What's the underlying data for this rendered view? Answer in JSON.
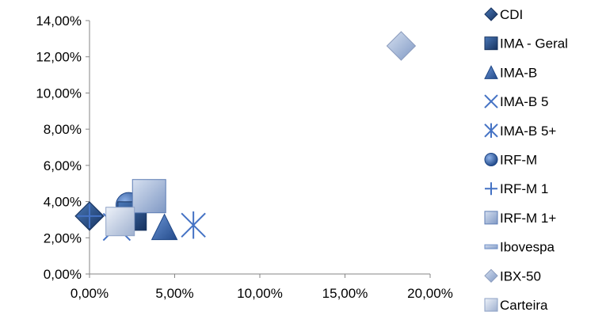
{
  "chart_data": {
    "type": "scatter",
    "title": "",
    "xlabel": "",
    "ylabel": "",
    "xlim": [
      0,
      0.2
    ],
    "ylim": [
      0,
      0.14
    ],
    "x_ticks": [
      "0,00%",
      "5,00%",
      "10,00%",
      "15,00%",
      "20,00%"
    ],
    "y_ticks": [
      "0,00%",
      "2,00%",
      "4,00%",
      "6,00%",
      "8,00%",
      "10,00%",
      "12,00%",
      "14,00%"
    ],
    "grid": false,
    "legend_position": "right",
    "series": [
      {
        "name": "CDI",
        "marker": "diamond",
        "color": "#1f497d",
        "x": 0.0,
        "y": 0.032
      },
      {
        "name": "IMA - Geral",
        "marker": "square",
        "color": "#1f497d",
        "x": 0.025,
        "y": 0.032
      },
      {
        "name": "IMA-B",
        "marker": "triangle",
        "color": "#2f5597",
        "x": 0.044,
        "y": 0.026
      },
      {
        "name": "IMA-B 5",
        "marker": "x",
        "color": "#4472c4",
        "x": 0.016,
        "y": 0.026
      },
      {
        "name": "IMA-B 5+",
        "marker": "star",
        "color": "#4472c4",
        "x": 0.061,
        "y": 0.027
      },
      {
        "name": "IRF-M",
        "marker": "circle",
        "color": "#2f5597",
        "x": 0.023,
        "y": 0.038
      },
      {
        "name": "IRF-M 1",
        "marker": "plus",
        "color": "#4472c4",
        "x": 0.0,
        "y": 0.032
      },
      {
        "name": "IRF-M 1+",
        "marker": "square-light",
        "color": "#6f8fc7",
        "x": 0.035,
        "y": 0.043
      },
      {
        "name": "Ibovespa",
        "marker": "dash",
        "color": "#6f8fc7",
        "x": null,
        "y": null
      },
      {
        "name": "IBX-50",
        "marker": "diamond-light",
        "color": "#a6b4cf",
        "x": 0.183,
        "y": 0.126
      },
      {
        "name": "Carteira",
        "marker": "square-pale",
        "color": "#b8c7e0",
        "x": 0.018,
        "y": 0.029
      }
    ]
  }
}
